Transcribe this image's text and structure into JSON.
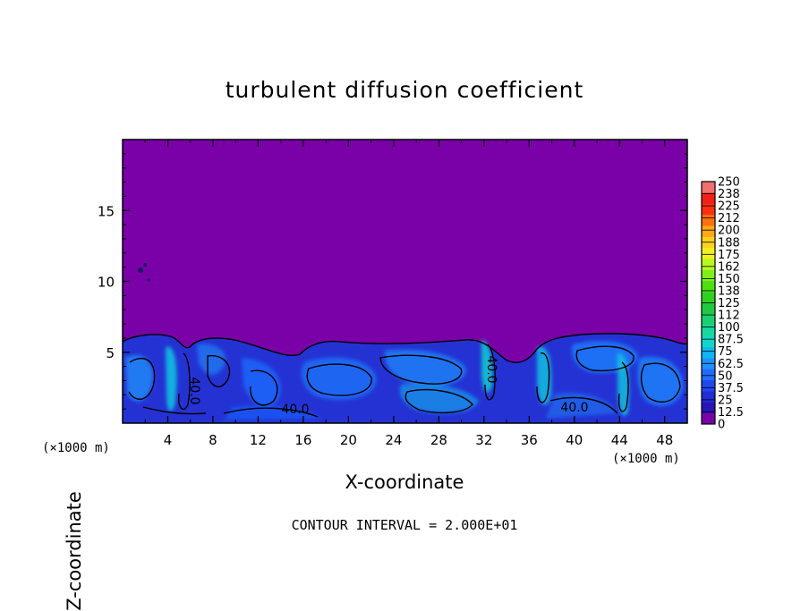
{
  "chart_data": {
    "type": "heatmap",
    "title": "turbulent diffusion coefficient",
    "xlabel": "X-coordinate",
    "ylabel": "Z-coordinate",
    "x_unit": "(×1000 m)",
    "x_ticks": [
      4,
      8,
      12,
      16,
      20,
      24,
      28,
      32,
      36,
      40,
      44,
      48
    ],
    "y_ticks": [
      5,
      10,
      15
    ],
    "xlim": [
      0,
      50
    ],
    "ylim": [
      0,
      20
    ],
    "grid": false,
    "colorbar": {
      "labels": [
        "0",
        "12.5",
        "25",
        "37.5",
        "50",
        "62.5",
        "75",
        "87.5",
        "100",
        "112",
        "125",
        "138",
        "150",
        "162",
        "175",
        "188",
        "200",
        "212",
        "225",
        "238",
        "250"
      ],
      "colors": [
        "#7a00a8",
        "#2a16b8",
        "#1f2ed6",
        "#2048f0",
        "#1f6cff",
        "#1e90ff",
        "#10b8f0",
        "#12d6c8",
        "#17d9a0",
        "#1bd070",
        "#22c840",
        "#30d020",
        "#4ee010",
        "#7ef018",
        "#b8f820",
        "#f0f020",
        "#ffd020",
        "#ffa818",
        "#ff7010",
        "#ff3010",
        "#f02018",
        "#f07070"
      ]
    },
    "background_value_range": "0–12.5",
    "turbulent_layer_top_z": 6.5,
    "contour_level_labels": [
      "40.0",
      "40.0",
      "40.0",
      "40.0",
      "40.0"
    ],
    "contour_interval_note": "CONTOUR INTERVAL = 2.000E+01"
  }
}
